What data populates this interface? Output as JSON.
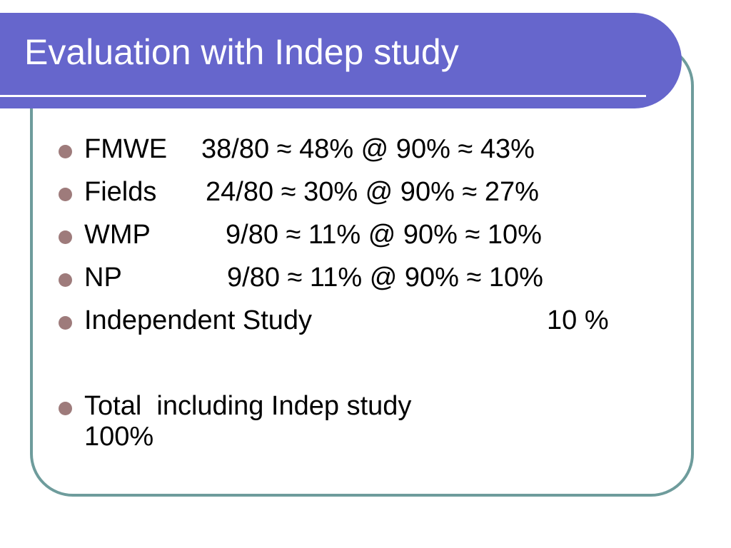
{
  "header": {
    "title": "Evaluation with Indep study"
  },
  "bullets": [
    {
      "label": "FMWE",
      "text": "38/80 ≈ 48% @ 90% ≈ 43%"
    },
    {
      "label": "Fields",
      "text": "24/80 ≈ 30% @ 90% ≈ 27%"
    },
    {
      "label": "WMP",
      "text": "9/80 ≈ 11% @ 90% ≈ 10%"
    },
    {
      "label": "NP",
      "text": "9/80 ≈ 11% @ 90% ≈ 10%"
    },
    {
      "label": "Independent Study",
      "text": "10 %"
    }
  ],
  "total": {
    "label": "Total  including Indep study",
    "text": "100%"
  }
}
